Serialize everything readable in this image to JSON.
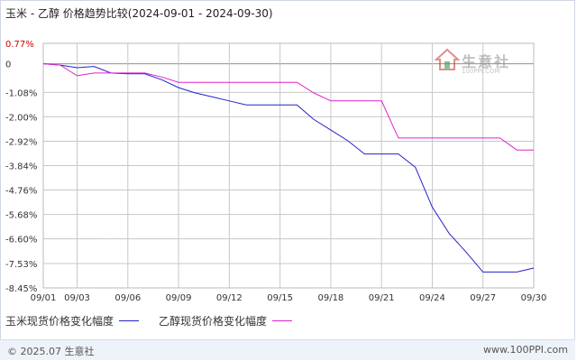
{
  "title": "玉米 - 乙醇 价格趋势比较(2024-09-01 - 2024-09-30)",
  "footer": {
    "left": "© 2025.07 生意社",
    "right": "www.100PPI.com"
  },
  "watermark": {
    "name": "生意社",
    "url": "100PPI.COM"
  },
  "colors": {
    "series_1": "#2222cc",
    "series_2": "#dd22cc",
    "grid": "#c8c8c8",
    "axis_label": "#cc0000"
  },
  "chart_data": {
    "type": "line",
    "title": "玉米 - 乙醇 价格趋势比较(2024-09-01 - 2024-09-30)",
    "y_ticks": [
      "0.77%",
      "0",
      "-1.08%",
      "-2.00%",
      "-2.92%",
      "-3.84%",
      "-4.76%",
      "-5.68%",
      "-6.60%",
      "-7.53%",
      "-8.45%"
    ],
    "y_tick_values": [
      0.77,
      0,
      -1.08,
      -2.0,
      -2.92,
      -3.84,
      -4.76,
      -5.68,
      -6.6,
      -7.53,
      -8.45
    ],
    "x_ticks": [
      "09/01",
      "09/03",
      "09/06",
      "09/09",
      "09/12",
      "09/15",
      "09/18",
      "09/21",
      "09/24",
      "09/27",
      "09/30"
    ],
    "ylim": [
      -8.45,
      0.77
    ],
    "xlim": [
      1,
      30
    ],
    "grid": true,
    "legend_position": "bottom-left",
    "series": [
      {
        "name": "玉米现货价格变化幅度",
        "points": [
          [
            1,
            0.0
          ],
          [
            2,
            -0.05
          ],
          [
            3,
            -0.15
          ],
          [
            4,
            -0.1
          ],
          [
            5,
            -0.35
          ],
          [
            6,
            -0.38
          ],
          [
            7,
            -0.38
          ],
          [
            8,
            -0.6
          ],
          [
            9,
            -0.9
          ],
          [
            10,
            -1.1
          ],
          [
            11,
            -1.25
          ],
          [
            12,
            -1.4
          ],
          [
            13,
            -1.55
          ],
          [
            14,
            -1.55
          ],
          [
            15,
            -1.55
          ],
          [
            16,
            -1.55
          ],
          [
            17,
            -2.1
          ],
          [
            18,
            -2.5
          ],
          [
            19,
            -2.9
          ],
          [
            20,
            -3.4
          ],
          [
            21,
            -3.4
          ],
          [
            22,
            -3.4
          ],
          [
            23,
            -3.9
          ],
          [
            24,
            -5.4
          ],
          [
            25,
            -6.4
          ],
          [
            26,
            -7.1
          ],
          [
            27,
            -7.85
          ],
          [
            28,
            -7.85
          ],
          [
            29,
            -7.85
          ],
          [
            30,
            -7.7
          ]
        ]
      },
      {
        "name": "乙醇现货价格变化幅度",
        "points": [
          [
            1,
            0.0
          ],
          [
            2,
            -0.05
          ],
          [
            3,
            -0.45
          ],
          [
            4,
            -0.35
          ],
          [
            5,
            -0.35
          ],
          [
            6,
            -0.35
          ],
          [
            7,
            -0.35
          ],
          [
            8,
            -0.5
          ],
          [
            9,
            -0.7
          ],
          [
            10,
            -0.7
          ],
          [
            11,
            -0.7
          ],
          [
            12,
            -0.7
          ],
          [
            13,
            -0.7
          ],
          [
            14,
            -0.7
          ],
          [
            15,
            -0.7
          ],
          [
            16,
            -0.7
          ],
          [
            17,
            -1.1
          ],
          [
            18,
            -1.4
          ],
          [
            19,
            -1.4
          ],
          [
            20,
            -1.4
          ],
          [
            21,
            -1.4
          ],
          [
            22,
            -2.8
          ],
          [
            23,
            -2.8
          ],
          [
            24,
            -2.8
          ],
          [
            25,
            -2.8
          ],
          [
            26,
            -2.8
          ],
          [
            27,
            -2.8
          ],
          [
            28,
            -2.8
          ],
          [
            29,
            -3.25
          ],
          [
            30,
            -3.25
          ]
        ]
      }
    ]
  }
}
